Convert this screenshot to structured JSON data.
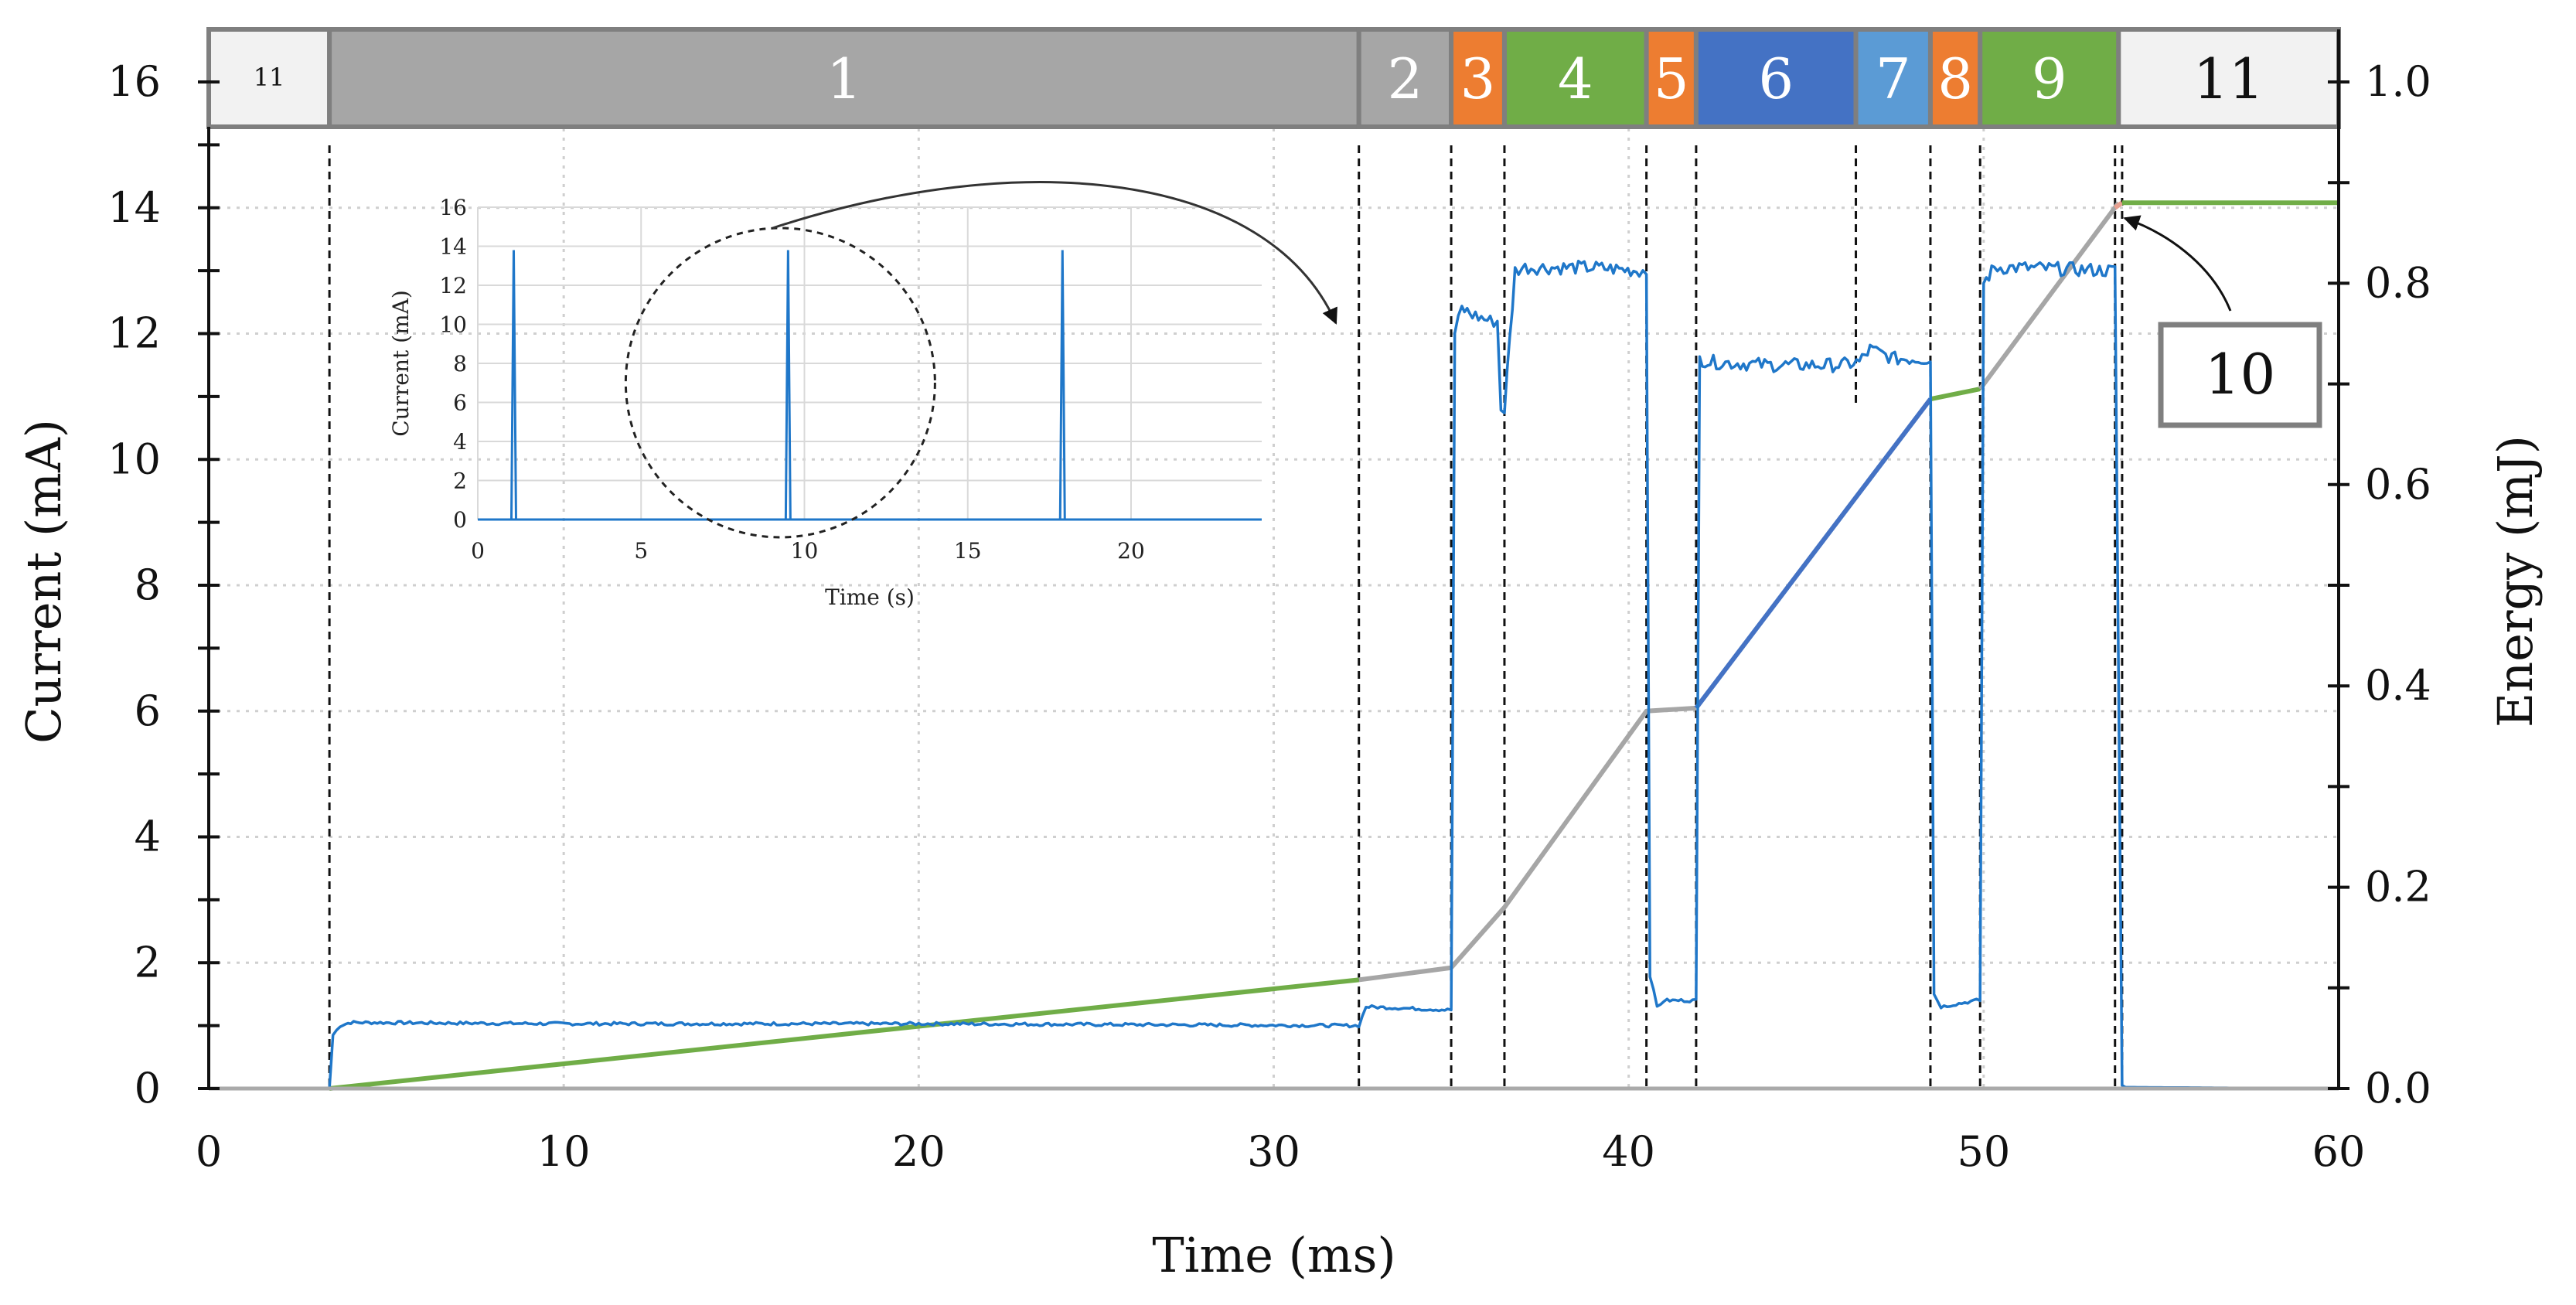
{
  "chart_data": {
    "type": "line",
    "xlabel": "Time (ms)",
    "ylabel": "Current (mA)",
    "y2label": "Energy (mJ)",
    "xlim": [
      0,
      60
    ],
    "ylim": [
      0,
      16
    ],
    "y2lim": [
      0,
      1.0
    ],
    "xticks": [
      "0",
      "10",
      "20",
      "30",
      "40",
      "50",
      "60"
    ],
    "yticks": [
      "0",
      "2",
      "4",
      "6",
      "8",
      "10",
      "12",
      "14",
      "16"
    ],
    "y2ticks": [
      "0.0",
      "0.2",
      "0.4",
      "0.6",
      "0.8",
      "1.0"
    ],
    "phases": [
      {
        "label": "11",
        "start": 0,
        "end": 3.4,
        "color": "#f2f2f2",
        "text_color": "#111111",
        "small": true
      },
      {
        "label": "1",
        "start": 3.4,
        "end": 32.4,
        "color": "#a6a6a6",
        "text_color": "#ffffff"
      },
      {
        "label": "2",
        "start": 32.4,
        "end": 35.0,
        "color": "#a6a6a6",
        "text_color": "#ffffff"
      },
      {
        "label": "3",
        "start": 35.0,
        "end": 36.5,
        "color": "#ed7d31",
        "text_color": "#ffffff"
      },
      {
        "label": "4",
        "start": 36.5,
        "end": 40.5,
        "color": "#70ad47",
        "text_color": "#ffffff"
      },
      {
        "label": "5",
        "start": 40.5,
        "end": 41.9,
        "color": "#ed7d31",
        "text_color": "#ffffff"
      },
      {
        "label": "6",
        "start": 41.9,
        "end": 46.4,
        "color": "#4472c4",
        "text_color": "#ffffff"
      },
      {
        "label": "7",
        "start": 46.4,
        "end": 48.5,
        "color": "#5b9bd5",
        "text_color": "#ffffff"
      },
      {
        "label": "8",
        "start": 48.5,
        "end": 49.9,
        "color": "#ed7d31",
        "text_color": "#ffffff"
      },
      {
        "label": "9",
        "start": 49.9,
        "end": 53.8,
        "color": "#70ad47",
        "text_color": "#ffffff"
      },
      {
        "label": "11",
        "start": 53.8,
        "end": 60,
        "color": "#f2f2f2",
        "text_color": "#111111"
      }
    ],
    "boundaries": [
      3.4,
      32.4,
      35.0,
      36.5,
      40.5,
      41.9,
      48.5,
      49.9,
      53.7,
      53.9
    ],
    "current_series": {
      "name": "Current",
      "color": "#1f77c9",
      "x": [
        0,
        3.4,
        3.5,
        3.7,
        4.0,
        10,
        20,
        32.3,
        32.4,
        32.6,
        34.9,
        35.0,
        35.1,
        35.3,
        35.6,
        36.1,
        36.3,
        36.4,
        36.5,
        36.8,
        37.0,
        38,
        39,
        40.3,
        40.5,
        40.6,
        40.8,
        41.0,
        41.8,
        41.9,
        42.0,
        42.3,
        44,
        46.0,
        46.5,
        46.8,
        47.5,
        48.4,
        48.5,
        48.6,
        48.8,
        49.8,
        49.9,
        50.0,
        50.3,
        51,
        53.6,
        53.7,
        53.9,
        54.0,
        60
      ],
      "y": [
        0.0,
        0.0,
        0.85,
        1.0,
        1.05,
        1.03,
        1.03,
        1.0,
        1.0,
        1.3,
        1.25,
        1.25,
        12.0,
        12.4,
        12.3,
        12.2,
        12.2,
        10.8,
        10.8,
        13.0,
        13.05,
        13.05,
        13.05,
        13.0,
        13.0,
        1.8,
        1.3,
        1.4,
        1.4,
        1.4,
        11.6,
        11.55,
        11.5,
        11.5,
        11.55,
        11.75,
        11.6,
        11.6,
        11.6,
        1.5,
        1.3,
        1.4,
        1.4,
        12.8,
        13.05,
        13.05,
        13.0,
        13.0,
        0.05,
        0.02,
        0.0
      ]
    },
    "energy_segments": [
      {
        "phase": "1",
        "color": "#70ad47",
        "x": [
          3.4,
          32.4
        ],
        "y": [
          0.0,
          0.108
        ]
      },
      {
        "phase": "2",
        "color": "#a6a6a6",
        "x": [
          32.4,
          35.0
        ],
        "y": [
          0.108,
          0.12
        ]
      },
      {
        "phase": "3-5",
        "color": "#a6a6a6",
        "x": [
          35.0,
          36.5,
          40.5,
          41.9
        ],
        "y": [
          0.12,
          0.18,
          0.375,
          0.378
        ]
      },
      {
        "phase": "6",
        "color": "#4472c4",
        "x": [
          41.9,
          48.5
        ],
        "y": [
          0.378,
          0.685
        ]
      },
      {
        "phase": "8",
        "color": "#70ad47",
        "x": [
          48.5,
          49.9
        ],
        "y": [
          0.685,
          0.695
        ]
      },
      {
        "phase": "9",
        "color": "#a6a6a6",
        "x": [
          49.9,
          53.8
        ],
        "y": [
          0.695,
          0.88
        ]
      },
      {
        "phase": "10",
        "color": "#e8a090",
        "x": [
          53.7,
          53.9
        ],
        "y": [
          0.875,
          0.88
        ]
      },
      {
        "phase": "11",
        "color": "#70ad47",
        "x": [
          53.9,
          60
        ],
        "y": [
          0.88,
          0.88
        ]
      }
    ],
    "annotation": {
      "label": "10",
      "target_x": 53.8,
      "target_y2": 0.88
    },
    "inset": {
      "type": "line",
      "xlabel": "Time (s)",
      "ylabel": "Current (mA)",
      "xlim": [
        0,
        24
      ],
      "ylim": [
        0,
        16
      ],
      "xticks": [
        "0",
        "5",
        "10",
        "15",
        "20"
      ],
      "yticks": [
        "0",
        "2",
        "4",
        "6",
        "8",
        "10",
        "12",
        "14",
        "16"
      ],
      "spikes_x": [
        1.1,
        9.5,
        17.9
      ],
      "spike_peak": 13.8,
      "highlight_x": 9.5
    }
  }
}
